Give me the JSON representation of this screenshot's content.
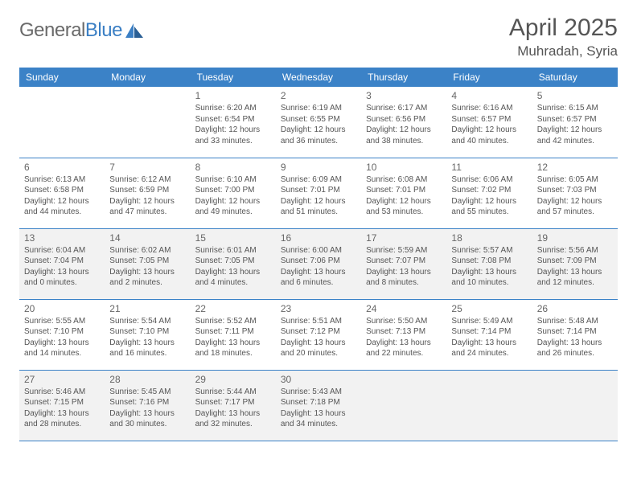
{
  "logo": {
    "text_gray": "General",
    "text_blue": "Blue"
  },
  "title": "April 2025",
  "location": "Muhradah, Syria",
  "colors": {
    "header_bg": "#3b82c7",
    "header_text": "#ffffff",
    "row_border": "#3b82c7",
    "alt_bg": "#f2f2f2",
    "body_text": "#555555",
    "daynum_text": "#666666",
    "logo_gray": "#6a6a6a",
    "logo_blue": "#3b7fc4",
    "page_bg": "#ffffff"
  },
  "typography": {
    "title_fontsize": 30,
    "location_fontsize": 17,
    "dayheader_fontsize": 12,
    "daynum_fontsize": 12,
    "detail_fontsize": 10
  },
  "day_labels": [
    "Sunday",
    "Monday",
    "Tuesday",
    "Wednesday",
    "Thursday",
    "Friday",
    "Saturday"
  ],
  "weeks": [
    {
      "alt": false,
      "days": [
        null,
        null,
        {
          "n": "1",
          "sunrise": "Sunrise: 6:20 AM",
          "sunset": "Sunset: 6:54 PM",
          "daylight": "Daylight: 12 hours and 33 minutes."
        },
        {
          "n": "2",
          "sunrise": "Sunrise: 6:19 AM",
          "sunset": "Sunset: 6:55 PM",
          "daylight": "Daylight: 12 hours and 36 minutes."
        },
        {
          "n": "3",
          "sunrise": "Sunrise: 6:17 AM",
          "sunset": "Sunset: 6:56 PM",
          "daylight": "Daylight: 12 hours and 38 minutes."
        },
        {
          "n": "4",
          "sunrise": "Sunrise: 6:16 AM",
          "sunset": "Sunset: 6:57 PM",
          "daylight": "Daylight: 12 hours and 40 minutes."
        },
        {
          "n": "5",
          "sunrise": "Sunrise: 6:15 AM",
          "sunset": "Sunset: 6:57 PM",
          "daylight": "Daylight: 12 hours and 42 minutes."
        }
      ]
    },
    {
      "alt": false,
      "days": [
        {
          "n": "6",
          "sunrise": "Sunrise: 6:13 AM",
          "sunset": "Sunset: 6:58 PM",
          "daylight": "Daylight: 12 hours and 44 minutes."
        },
        {
          "n": "7",
          "sunrise": "Sunrise: 6:12 AM",
          "sunset": "Sunset: 6:59 PM",
          "daylight": "Daylight: 12 hours and 47 minutes."
        },
        {
          "n": "8",
          "sunrise": "Sunrise: 6:10 AM",
          "sunset": "Sunset: 7:00 PM",
          "daylight": "Daylight: 12 hours and 49 minutes."
        },
        {
          "n": "9",
          "sunrise": "Sunrise: 6:09 AM",
          "sunset": "Sunset: 7:01 PM",
          "daylight": "Daylight: 12 hours and 51 minutes."
        },
        {
          "n": "10",
          "sunrise": "Sunrise: 6:08 AM",
          "sunset": "Sunset: 7:01 PM",
          "daylight": "Daylight: 12 hours and 53 minutes."
        },
        {
          "n": "11",
          "sunrise": "Sunrise: 6:06 AM",
          "sunset": "Sunset: 7:02 PM",
          "daylight": "Daylight: 12 hours and 55 minutes."
        },
        {
          "n": "12",
          "sunrise": "Sunrise: 6:05 AM",
          "sunset": "Sunset: 7:03 PM",
          "daylight": "Daylight: 12 hours and 57 minutes."
        }
      ]
    },
    {
      "alt": true,
      "days": [
        {
          "n": "13",
          "sunrise": "Sunrise: 6:04 AM",
          "sunset": "Sunset: 7:04 PM",
          "daylight": "Daylight: 13 hours and 0 minutes."
        },
        {
          "n": "14",
          "sunrise": "Sunrise: 6:02 AM",
          "sunset": "Sunset: 7:05 PM",
          "daylight": "Daylight: 13 hours and 2 minutes."
        },
        {
          "n": "15",
          "sunrise": "Sunrise: 6:01 AM",
          "sunset": "Sunset: 7:05 PM",
          "daylight": "Daylight: 13 hours and 4 minutes."
        },
        {
          "n": "16",
          "sunrise": "Sunrise: 6:00 AM",
          "sunset": "Sunset: 7:06 PM",
          "daylight": "Daylight: 13 hours and 6 minutes."
        },
        {
          "n": "17",
          "sunrise": "Sunrise: 5:59 AM",
          "sunset": "Sunset: 7:07 PM",
          "daylight": "Daylight: 13 hours and 8 minutes."
        },
        {
          "n": "18",
          "sunrise": "Sunrise: 5:57 AM",
          "sunset": "Sunset: 7:08 PM",
          "daylight": "Daylight: 13 hours and 10 minutes."
        },
        {
          "n": "19",
          "sunrise": "Sunrise: 5:56 AM",
          "sunset": "Sunset: 7:09 PM",
          "daylight": "Daylight: 13 hours and 12 minutes."
        }
      ]
    },
    {
      "alt": false,
      "days": [
        {
          "n": "20",
          "sunrise": "Sunrise: 5:55 AM",
          "sunset": "Sunset: 7:10 PM",
          "daylight": "Daylight: 13 hours and 14 minutes."
        },
        {
          "n": "21",
          "sunrise": "Sunrise: 5:54 AM",
          "sunset": "Sunset: 7:10 PM",
          "daylight": "Daylight: 13 hours and 16 minutes."
        },
        {
          "n": "22",
          "sunrise": "Sunrise: 5:52 AM",
          "sunset": "Sunset: 7:11 PM",
          "daylight": "Daylight: 13 hours and 18 minutes."
        },
        {
          "n": "23",
          "sunrise": "Sunrise: 5:51 AM",
          "sunset": "Sunset: 7:12 PM",
          "daylight": "Daylight: 13 hours and 20 minutes."
        },
        {
          "n": "24",
          "sunrise": "Sunrise: 5:50 AM",
          "sunset": "Sunset: 7:13 PM",
          "daylight": "Daylight: 13 hours and 22 minutes."
        },
        {
          "n": "25",
          "sunrise": "Sunrise: 5:49 AM",
          "sunset": "Sunset: 7:14 PM",
          "daylight": "Daylight: 13 hours and 24 minutes."
        },
        {
          "n": "26",
          "sunrise": "Sunrise: 5:48 AM",
          "sunset": "Sunset: 7:14 PM",
          "daylight": "Daylight: 13 hours and 26 minutes."
        }
      ]
    },
    {
      "alt": true,
      "days": [
        {
          "n": "27",
          "sunrise": "Sunrise: 5:46 AM",
          "sunset": "Sunset: 7:15 PM",
          "daylight": "Daylight: 13 hours and 28 minutes."
        },
        {
          "n": "28",
          "sunrise": "Sunrise: 5:45 AM",
          "sunset": "Sunset: 7:16 PM",
          "daylight": "Daylight: 13 hours and 30 minutes."
        },
        {
          "n": "29",
          "sunrise": "Sunrise: 5:44 AM",
          "sunset": "Sunset: 7:17 PM",
          "daylight": "Daylight: 13 hours and 32 minutes."
        },
        {
          "n": "30",
          "sunrise": "Sunrise: 5:43 AM",
          "sunset": "Sunset: 7:18 PM",
          "daylight": "Daylight: 13 hours and 34 minutes."
        },
        null,
        null,
        null
      ]
    }
  ]
}
